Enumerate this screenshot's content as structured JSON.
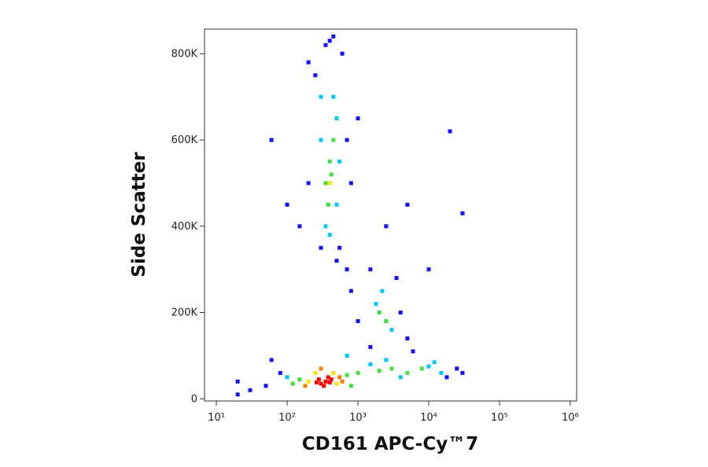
{
  "chart_data": {
    "type": "scatter",
    "x_label": "CD161 APC-Cy™7",
    "y_label": "Side Scatter",
    "xscale": "log",
    "xlim": [
      6.8,
      1230000
    ],
    "ylim": [
      -5000,
      857000
    ],
    "xticks": [
      {
        "value": 10,
        "label": "10¹"
      },
      {
        "value": 100,
        "label": "10²"
      },
      {
        "value": 1000,
        "label": "10³"
      },
      {
        "value": 10000,
        "label": "10⁴"
      },
      {
        "value": 100000,
        "label": "10⁵"
      },
      {
        "value": 1000000,
        "label": "10⁶"
      }
    ],
    "yticks": [
      0,
      {
        "value": 200000,
        "label": "200K"
      },
      {
        "value": 400000,
        "label": "400K"
      },
      {
        "value": 600000,
        "label": "600K"
      },
      {
        "value": 800000,
        "label": "800K"
      }
    ],
    "series": [
      {
        "color": "#1010ff",
        "x": [
          50,
          80,
          30,
          20,
          60,
          25000,
          30000,
          18000,
          1500,
          6000,
          20,
          1500,
          4000,
          1000,
          5000,
          3500,
          800,
          250,
          600,
          200,
          700,
          300,
          550,
          150,
          800,
          1000,
          400,
          500,
          100,
          60,
          2500,
          5000,
          10000,
          20000,
          30000,
          200,
          700,
          450,
          350
        ],
        "values": [
          30000,
          60000,
          20000,
          40000,
          90000,
          70000,
          60000,
          50000,
          120000,
          110000,
          10000,
          300000,
          200000,
          180000,
          140000,
          280000,
          250000,
          750000,
          800000,
          500000,
          600000,
          350000,
          350000,
          400000,
          500000,
          650000,
          830000,
          320000,
          450000,
          600000,
          400000,
          450000,
          300000,
          620000,
          430000,
          780000,
          300000,
          840000,
          820000
        ]
      },
      {
        "color": "#00c8ff",
        "x": [
          100,
          1500,
          4000,
          10000,
          15000,
          2500,
          700,
          12000,
          1800,
          3000,
          2200,
          300,
          500,
          350,
          500,
          300,
          450,
          400,
          550
        ],
        "values": [
          50000,
          80000,
          50000,
          75000,
          60000,
          90000,
          100000,
          85000,
          220000,
          160000,
          250000,
          600000,
          650000,
          400000,
          450000,
          700000,
          700000,
          380000,
          550000
        ]
      },
      {
        "color": "#40e040",
        "x": [
          150,
          700,
          1000,
          2000,
          3000,
          5000,
          8000,
          120,
          800,
          2000,
          2500,
          400,
          350,
          450,
          380,
          420
        ],
        "values": [
          45000,
          55000,
          60000,
          65000,
          70000,
          60000,
          70000,
          35000,
          30000,
          200000,
          180000,
          550000,
          500000,
          600000,
          450000,
          520000
        ]
      },
      {
        "color": "#ffe000",
        "x": [
          200,
          500,
          250,
          450,
          400
        ],
        "values": [
          40000,
          35000,
          60000,
          60000,
          500000
        ]
      },
      {
        "color": "#ff8000",
        "x": [
          180,
          550,
          300,
          600
        ],
        "values": [
          30000,
          50000,
          70000,
          40000
        ]
      },
      {
        "color": "#ff0000",
        "x": [
          300,
          350,
          280,
          400,
          330,
          380,
          260,
          420
        ],
        "values": [
          35000,
          40000,
          45000,
          38000,
          30000,
          50000,
          38000,
          45000
        ]
      }
    ]
  }
}
